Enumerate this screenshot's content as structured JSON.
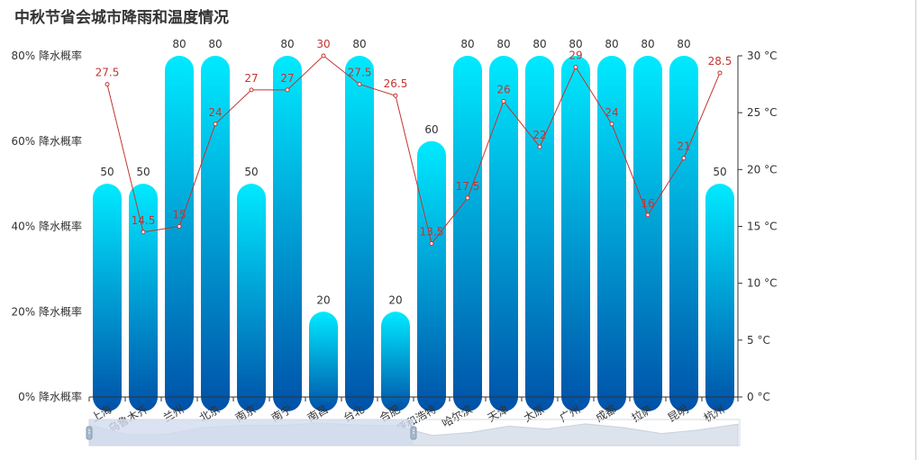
{
  "chart_data": {
    "type": "bar+line",
    "title": "中秋节省会城市降雨和温度情况",
    "categories": [
      "上海",
      "乌鲁木齐",
      "兰州",
      "北京",
      "南京",
      "南宁",
      "南昌",
      "台北",
      "合肥",
      "呼和浩特",
      "哈尔滨",
      "天津",
      "太原",
      "广州",
      "成都",
      "拉萨",
      "昆明",
      "杭州"
    ],
    "series": [
      {
        "name": "降水概率",
        "type": "bar",
        "axis": "left",
        "values": [
          50,
          50,
          80,
          80,
          50,
          80,
          20,
          80,
          20,
          60,
          80,
          80,
          80,
          80,
          80,
          80,
          80,
          50
        ]
      },
      {
        "name": "温度",
        "type": "line",
        "axis": "right",
        "values": [
          27.5,
          14.5,
          15,
          24,
          27,
          27,
          30,
          27.5,
          26.5,
          13.5,
          17.5,
          26,
          22,
          29,
          24,
          16,
          21,
          28.5
        ]
      }
    ],
    "y_left": {
      "min": 0,
      "max": 80,
      "ticks": [
        0,
        20,
        40,
        60,
        80
      ],
      "tick_labels": [
        "0% 降水概率",
        "20% 降水概率",
        "40% 降水概率",
        "60% 降水概率",
        "80% 降水概率"
      ]
    },
    "y_right": {
      "min": 0,
      "max": 30,
      "ticks": [
        0,
        5,
        10,
        15,
        20,
        25,
        30
      ],
      "tick_labels": [
        "0 °C",
        "5 °C",
        "10 °C",
        "15 °C",
        "20 °C",
        "25 °C",
        "30 °C"
      ]
    },
    "data_zoom": {
      "start": 0,
      "end": 50
    },
    "colors": {
      "bar_top": "#00eaff",
      "bar_bottom": "#0051a8",
      "line": "#c23531",
      "axis": "#333333",
      "text": "#333333",
      "zoom_fill": "#d2dbee",
      "zoom_border": "#d2d8e6",
      "zoom_area": "#dde3ec"
    }
  }
}
